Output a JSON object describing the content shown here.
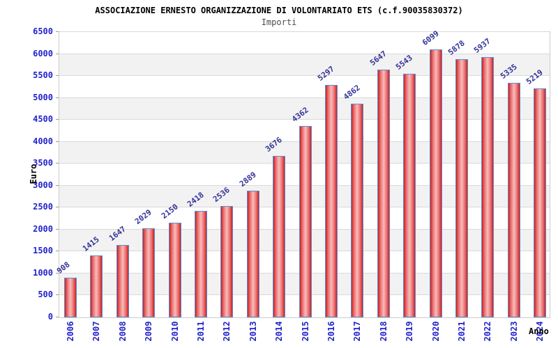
{
  "title": "ASSOCIAZIONE ERNESTO ORGANIZZAZIONE DI VOLONTARIATO ETS (c.f.90035830372)",
  "subtitle": "Importi",
  "chart_data": {
    "type": "bar",
    "categories": [
      "2006",
      "2007",
      "2008",
      "2009",
      "2010",
      "2011",
      "2012",
      "2013",
      "2014",
      "2015",
      "2016",
      "2017",
      "2018",
      "2019",
      "2020",
      "2021",
      "2022",
      "2023",
      "2024"
    ],
    "values": [
      908,
      1415,
      1647,
      2029,
      2150,
      2418,
      2536,
      2889,
      3676,
      4362,
      5297,
      4862,
      5647,
      5543,
      6099,
      5878,
      5937,
      5335,
      5219
    ],
    "title": "ASSOCIAZIONE ERNESTO ORGANIZZAZIONE DI VOLONTARIATO ETS (c.f.90035830372)",
    "subtitle": "Importi",
    "xlabel": "Anno",
    "ylabel": "Euro",
    "ylim": [
      0,
      6500
    ],
    "ytick_step": 500,
    "grid": true,
    "alternating_bands": true,
    "bar_value_labels_shown": true,
    "legend_position": "none"
  },
  "colors": {
    "bar_edge": "#cc2020",
    "bar_mid": "#ea6e6e",
    "bar_center": "#f8bcbc",
    "bar_border": "#5b8fd0",
    "ytick_label": "#2222cc",
    "xtick_label": "#2222cc",
    "value_label": "#333399",
    "subtitle_text": "#4d4d4d",
    "grid_line": "#d9d9d9",
    "band_gray": "#f2f2f2",
    "plot_border": "#cccccc",
    "title_text": "#000000"
  }
}
